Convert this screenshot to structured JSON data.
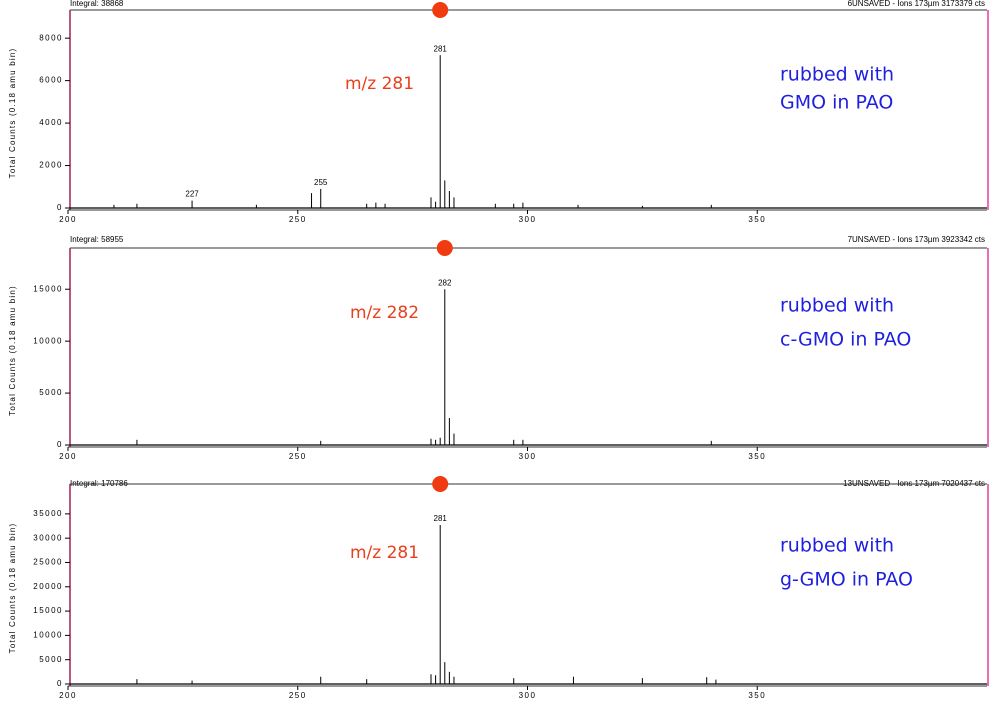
{
  "chart_data": [
    {
      "type": "spectrum",
      "header_left": "Integral: 38868",
      "header_right": "6UNSAVED - Ions 173µm 3173379 cts",
      "y_label": "Total Counts (0.18 amu bin)",
      "annotation": "m/z 281",
      "note": [
        "rubbed with",
        "GMO in PAO"
      ],
      "x": [
        210,
        215,
        227,
        241,
        253,
        255,
        265,
        267,
        269,
        279,
        280,
        281,
        282,
        283,
        284,
        293,
        297,
        299,
        311,
        325,
        340
      ],
      "values": [
        150,
        200,
        350,
        150,
        700,
        900,
        200,
        250,
        200,
        500,
        300,
        7200,
        1300,
        800,
        500,
        200,
        200,
        250,
        150,
        100,
        150
      ],
      "peak_labels": [
        227,
        255,
        281
      ],
      "color": "#000000",
      "xlim": [
        200,
        400
      ],
      "xticks": [
        200,
        250,
        300,
        350
      ],
      "ylim": [
        0,
        8950
      ],
      "yticks": [
        0,
        2000,
        4000,
        6000,
        8000
      ]
    },
    {
      "type": "spectrum",
      "header_left": "Integral: 58955",
      "header_right": "7UNSAVED - Ions 173µm 3923342 cts",
      "y_label": "Total Counts (0.18 amu bin)",
      "annotation": "m/z 282",
      "note": [
        "rubbed with",
        "c-GMO in PAO"
      ],
      "x": [
        215,
        255,
        279,
        280,
        281,
        282,
        283,
        284,
        297,
        299,
        340
      ],
      "values": [
        500,
        400,
        600,
        500,
        700,
        15000,
        2600,
        1100,
        500,
        500,
        400
      ],
      "peak_labels": [
        282
      ],
      "color": "#000000",
      "xlim": [
        200,
        400
      ],
      "xticks": [
        200,
        250,
        300,
        350
      ],
      "ylim": [
        0,
        18200
      ],
      "yticks": [
        0,
        5000,
        10000,
        15000
      ]
    },
    {
      "type": "spectrum",
      "header_left": "Integral: 170786",
      "header_right": "13UNSAVED - Ions 173µm 7020437 cts",
      "y_label": "Total Counts (0.18 amu bin)",
      "annotation": "m/z 281",
      "note": [
        "rubbed with",
        "g-GMO in PAO"
      ],
      "x": [
        215,
        227,
        255,
        265,
        279,
        280,
        281,
        282,
        283,
        284,
        297,
        310,
        325,
        339,
        341
      ],
      "values": [
        1000,
        700,
        1500,
        1000,
        2000,
        1800,
        32700,
        4500,
        2500,
        1500,
        1200,
        1500,
        1200,
        1400,
        900
      ],
      "peak_labels": [
        281
      ],
      "color": "#000000",
      "xlim": [
        200,
        400
      ],
      "xticks": [
        200,
        250,
        300,
        350
      ],
      "ylim": [
        0,
        39500
      ],
      "yticks": [
        0,
        5000,
        10000,
        15000,
        20000,
        25000,
        30000,
        35000
      ]
    }
  ]
}
